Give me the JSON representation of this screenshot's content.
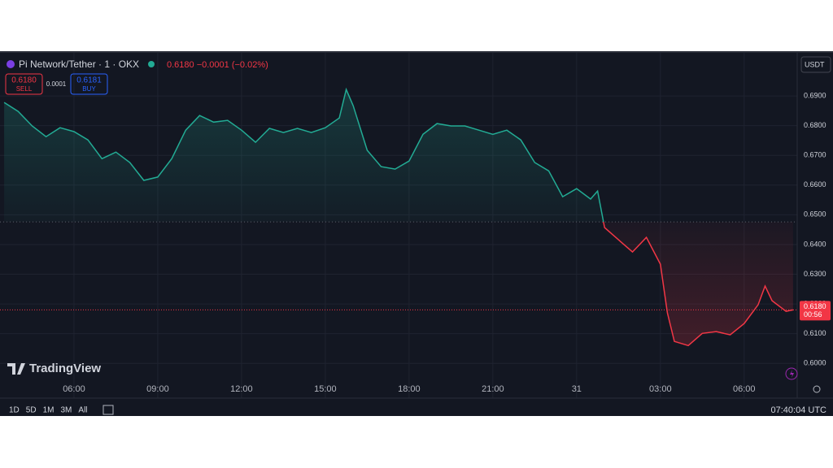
{
  "chart_data": {
    "type": "line",
    "baseline": 0.6476,
    "current": 0.618,
    "colors": {
      "up": "#22ab94",
      "down": "#f23645"
    },
    "x": [
      3.5,
      4.0,
      4.5,
      5.0,
      5.5,
      6.0,
      6.5,
      7.0,
      7.5,
      8.0,
      8.5,
      9.0,
      9.5,
      10.0,
      10.5,
      11.0,
      11.5,
      12.0,
      12.5,
      13.0,
      13.5,
      14.0,
      14.5,
      15.0,
      15.5,
      15.75,
      16.0,
      16.5,
      17.0,
      17.5,
      18.0,
      18.5,
      19.0,
      19.5,
      20.0,
      20.5,
      21.0,
      21.5,
      22.0,
      22.5,
      23.0,
      23.5,
      24.0,
      24.5,
      24.75,
      25.0,
      25.5,
      26.0,
      26.5,
      27.0,
      27.25,
      27.5,
      28.0,
      28.5,
      29.0,
      29.5,
      30.0,
      30.5,
      30.75,
      31.0,
      31.5,
      31.75
    ],
    "values": [
      0.6878,
      0.6848,
      0.6799,
      0.6763,
      0.6793,
      0.678,
      0.6752,
      0.6689,
      0.6711,
      0.6676,
      0.6616,
      0.6627,
      0.6689,
      0.6785,
      0.6834,
      0.6812,
      0.6818,
      0.6785,
      0.6744,
      0.6791,
      0.6777,
      0.6791,
      0.6777,
      0.6793,
      0.6826,
      0.6922,
      0.6867,
      0.6717,
      0.6662,
      0.6654,
      0.6681,
      0.6771,
      0.6807,
      0.6799,
      0.6799,
      0.6785,
      0.6771,
      0.6785,
      0.6752,
      0.6676,
      0.6648,
      0.6561,
      0.6588,
      0.6553,
      0.658,
      0.6457,
      0.6416,
      0.6375,
      0.6424,
      0.6334,
      0.617,
      0.6074,
      0.606,
      0.6101,
      0.6107,
      0.6096,
      0.6134,
      0.6197,
      0.626,
      0.6211,
      0.6175,
      0.618
    ],
    "xlim": [
      3.35,
      31.9
    ],
    "xticks": [
      {
        "value": 6,
        "label": "06:00"
      },
      {
        "value": 9,
        "label": "09:00"
      },
      {
        "value": 12,
        "label": "12:00"
      },
      {
        "value": 15,
        "label": "15:00"
      },
      {
        "value": 18,
        "label": "18:00"
      },
      {
        "value": 21,
        "label": "21:00"
      },
      {
        "value": 24,
        "label": "31"
      },
      {
        "value": 27,
        "label": "03:00"
      },
      {
        "value": 30,
        "label": "06:00"
      }
    ],
    "ylim": [
      0.5883,
      0.7037
    ],
    "yticks": [
      {
        "value": 0.69,
        "label": "0.6900"
      },
      {
        "value": 0.68,
        "label": "0.6800"
      },
      {
        "value": 0.67,
        "label": "0.6700"
      },
      {
        "value": 0.66,
        "label": "0.6600"
      },
      {
        "value": 0.65,
        "label": "0.6500"
      },
      {
        "value": 0.64,
        "label": "0.6400"
      },
      {
        "value": 0.63,
        "label": "0.6300"
      },
      {
        "value": 0.62,
        "label": "0.6200"
      },
      {
        "value": 0.61,
        "label": "0.6100"
      },
      {
        "value": 0.6,
        "label": "0.6000"
      }
    ],
    "grid": true,
    "current_label": "0.6180",
    "countdown": "00:56"
  },
  "ui": {
    "symbol": "Pi Network/Tether · 1 · OKX",
    "change": "0.6180  −0.0001 (−0.02%)",
    "sell_price": "0.6180",
    "sell": "SELL",
    "spread": "0.0001",
    "buy_price": "0.6181",
    "buy": "BUY",
    "currency": "USDT",
    "brand": "TradingView",
    "ranges": [
      "1D",
      "5D",
      "1M",
      "3M",
      "All"
    ],
    "clock": "07:40:04 UTC"
  }
}
